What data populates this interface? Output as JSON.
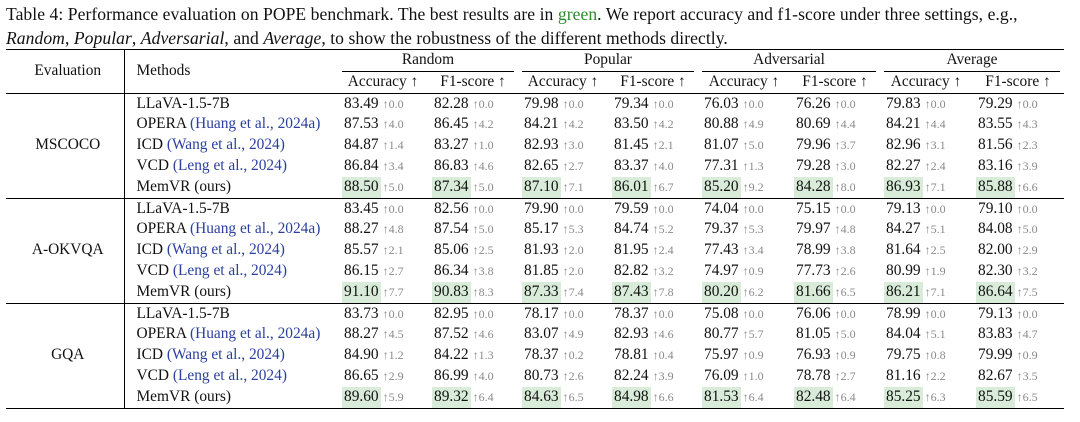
{
  "caption": {
    "part1": "Table 4: Performance evaluation on POPE benchmark. The best results are in ",
    "green_word": "green",
    "part2": ". We report accuracy and f1-score under three settings, e.g., ",
    "s1": "Random",
    "sep1": ", ",
    "s2": "Popular",
    "sep2": ", ",
    "s3": "Adversarial",
    "sep3": ", and ",
    "s4": "Average",
    "part3": ", to show the robustness of the different methods directly."
  },
  "header": {
    "evaluation": "Evaluation",
    "methods": "Methods",
    "settings": [
      "Random",
      "Popular",
      "Adversarial",
      "Average"
    ],
    "accuracy": "Accuracy ↑",
    "f1": "F1-score ↑"
  },
  "groups": [
    {
      "name": "MSCOCO",
      "rows": [
        {
          "method": "LLaVA-1.5-7B",
          "cite": "",
          "cells": [
            [
              "83.49",
              "↑0.0"
            ],
            [
              "82.28",
              "↑0.0"
            ],
            [
              "79.98",
              "↑0.0"
            ],
            [
              "79.34",
              "↑0.0"
            ],
            [
              "76.03",
              "↑0.0"
            ],
            [
              "76.26",
              "↑0.0"
            ],
            [
              "79.83",
              "↑0.0"
            ],
            [
              "79.29",
              "↑0.0"
            ]
          ]
        },
        {
          "method": "OPERA ",
          "cite": "(Huang et al., 2024a)",
          "cells": [
            [
              "87.53",
              "↑4.0"
            ],
            [
              "86.45",
              "↑4.2"
            ],
            [
              "84.21",
              "↑4.2"
            ],
            [
              "83.50",
              "↑4.2"
            ],
            [
              "80.88",
              "↑4.9"
            ],
            [
              "80.69",
              "↑4.4"
            ],
            [
              "84.21",
              "↑4.4"
            ],
            [
              "83.55",
              "↑4.3"
            ]
          ]
        },
        {
          "method": "ICD ",
          "cite": "(Wang et al., 2024)",
          "cells": [
            [
              "84.87",
              "↑1.4"
            ],
            [
              "83.27",
              "↑1.0"
            ],
            [
              "82.93",
              "↑3.0"
            ],
            [
              "81.45",
              "↑2.1"
            ],
            [
              "81.07",
              "↑5.0"
            ],
            [
              "79.96",
              "↑3.7"
            ],
            [
              "82.96",
              "↑3.1"
            ],
            [
              "81.56",
              "↑2.3"
            ]
          ]
        },
        {
          "method": "VCD ",
          "cite": "(Leng et al., 2024)",
          "cells": [
            [
              "86.84",
              "↑3.4"
            ],
            [
              "86.83",
              "↑4.6"
            ],
            [
              "82.65",
              "↑2.7"
            ],
            [
              "83.37",
              "↑4.0"
            ],
            [
              "77.31",
              "↑1.3"
            ],
            [
              "79.28",
              "↑3.0"
            ],
            [
              "82.27",
              "↑2.4"
            ],
            [
              "83.16",
              "↑3.9"
            ]
          ]
        },
        {
          "method": "MemVR (ours)",
          "cite": "",
          "cells": [
            [
              "88.50",
              "↑5.0"
            ],
            [
              "87.34",
              "↑5.0"
            ],
            [
              "87.10",
              "↑7.1"
            ],
            [
              "86.01",
              "↑6.7"
            ],
            [
              "85.20",
              "↑9.2"
            ],
            [
              "84.28",
              "↑8.0"
            ],
            [
              "86.93",
              "↑7.1"
            ],
            [
              "85.88",
              "↑6.6"
            ]
          ],
          "best": [
            true,
            true,
            true,
            true,
            true,
            true,
            true,
            true
          ]
        }
      ]
    },
    {
      "name": "A-OKVQA",
      "rows": [
        {
          "method": "LLaVA-1.5-7B",
          "cite": "",
          "cells": [
            [
              "83.45",
              "↑0.0"
            ],
            [
              "82.56",
              "↑0.0"
            ],
            [
              "79.90",
              "↑0.0"
            ],
            [
              "79.59",
              "↑0.0"
            ],
            [
              "74.04",
              "↑0.0"
            ],
            [
              "75.15",
              "↑0.0"
            ],
            [
              "79.13",
              "↑0.0"
            ],
            [
              "79.10",
              "↑0.0"
            ]
          ]
        },
        {
          "method": "OPERA ",
          "cite": "(Huang et al., 2024a)",
          "cells": [
            [
              "88.27",
              "↑4.8"
            ],
            [
              "87.54",
              "↑5.0"
            ],
            [
              "85.17",
              "↑5.3"
            ],
            [
              "84.74",
              "↑5.2"
            ],
            [
              "79.37",
              "↑5.3"
            ],
            [
              "79.97",
              "↑4.8"
            ],
            [
              "84.27",
              "↑5.1"
            ],
            [
              "84.08",
              "↑5.0"
            ]
          ]
        },
        {
          "method": "ICD ",
          "cite": "(Wang et al., 2024)",
          "cells": [
            [
              "85.57",
              "↑2.1"
            ],
            [
              "85.06",
              "↑2.5"
            ],
            [
              "81.93",
              "↑2.0"
            ],
            [
              "81.95",
              "↑2.4"
            ],
            [
              "77.43",
              "↑3.4"
            ],
            [
              "78.99",
              "↑3.8"
            ],
            [
              "81.64",
              "↑2.5"
            ],
            [
              "82.00",
              "↑2.9"
            ]
          ]
        },
        {
          "method": "VCD ",
          "cite": "(Leng et al., 2024)",
          "cells": [
            [
              "86.15",
              "↑2.7"
            ],
            [
              "86.34",
              "↑3.8"
            ],
            [
              "81.85",
              "↑2.0"
            ],
            [
              "82.82",
              "↑3.2"
            ],
            [
              "74.97",
              "↑0.9"
            ],
            [
              "77.73",
              "↑2.6"
            ],
            [
              "80.99",
              "↑1.9"
            ],
            [
              "82.30",
              "↑3.2"
            ]
          ]
        },
        {
          "method": "MemVR (ours)",
          "cite": "",
          "cells": [
            [
              "91.10",
              "↑7.7"
            ],
            [
              "90.83",
              "↑8.3"
            ],
            [
              "87.33",
              "↑7.4"
            ],
            [
              "87.43",
              "↑7.8"
            ],
            [
              "80.20",
              "↑6.2"
            ],
            [
              "81.66",
              "↑6.5"
            ],
            [
              "86.21",
              "↑7.1"
            ],
            [
              "86.64",
              "↑7.5"
            ]
          ],
          "best": [
            true,
            true,
            true,
            true,
            true,
            true,
            true,
            true
          ]
        }
      ]
    },
    {
      "name": "GQA",
      "rows": [
        {
          "method": "LLaVA-1.5-7B",
          "cite": "",
          "cells": [
            [
              "83.73",
              "↑0.0"
            ],
            [
              "82.95",
              "↑0.0"
            ],
            [
              "78.17",
              "↑0.0"
            ],
            [
              "78.37",
              "↑0.0"
            ],
            [
              "75.08",
              "↑0.0"
            ],
            [
              "76.06",
              "↑0.0"
            ],
            [
              "78.99",
              "↑0.0"
            ],
            [
              "79.13",
              "↑0.0"
            ]
          ]
        },
        {
          "method": "OPERA ",
          "cite": "(Huang et al., 2024a)",
          "cells": [
            [
              "88.27",
              "↑4.5"
            ],
            [
              "87.52",
              "↑4.6"
            ],
            [
              "83.07",
              "↑4.9"
            ],
            [
              "82.93",
              "↑4.6"
            ],
            [
              "80.77",
              "↑5.7"
            ],
            [
              "81.05",
              "↑5.0"
            ],
            [
              "84.04",
              "↑5.1"
            ],
            [
              "83.83",
              "↑4.7"
            ]
          ]
        },
        {
          "method": "ICD ",
          "cite": "(Wang et al., 2024)",
          "cells": [
            [
              "84.90",
              "↑1.2"
            ],
            [
              "84.22",
              "↑1.3"
            ],
            [
              "78.37",
              "↑0.2"
            ],
            [
              "78.81",
              "↑0.4"
            ],
            [
              "75.97",
              "↑0.9"
            ],
            [
              "76.93",
              "↑0.9"
            ],
            [
              "79.75",
              "↑0.8"
            ],
            [
              "79.99",
              "↑0.9"
            ]
          ]
        },
        {
          "method": "VCD ",
          "cite": "(Leng et al., 2024)",
          "cells": [
            [
              "86.65",
              "↑2.9"
            ],
            [
              "86.99",
              "↑4.0"
            ],
            [
              "80.73",
              "↑2.6"
            ],
            [
              "82.24",
              "↑3.9"
            ],
            [
              "76.09",
              "↑1.0"
            ],
            [
              "78.78",
              "↑2.7"
            ],
            [
              "81.16",
              "↑2.2"
            ],
            [
              "82.67",
              "↑3.5"
            ]
          ]
        },
        {
          "method": "MemVR (ours)",
          "cite": "",
          "cells": [
            [
              "89.60",
              "↑5.9"
            ],
            [
              "89.32",
              "↑6.4"
            ],
            [
              "84.63",
              "↑6.5"
            ],
            [
              "84.98",
              "↑6.6"
            ],
            [
              "81.53",
              "↑6.4"
            ],
            [
              "82.48",
              "↑6.4"
            ],
            [
              "85.25",
              "↑6.3"
            ],
            [
              "85.59",
              "↑6.5"
            ]
          ],
          "best": [
            true,
            true,
            true,
            true,
            true,
            true,
            true,
            true
          ]
        }
      ]
    }
  ]
}
